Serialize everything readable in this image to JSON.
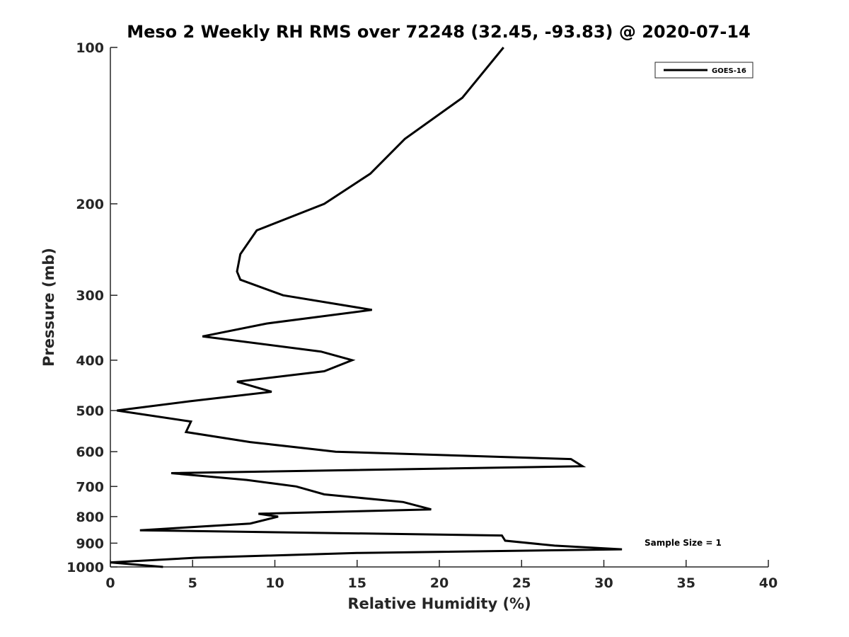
{
  "chart_data": {
    "type": "line",
    "title": "Meso 2 Weekly RH RMS over 72248 (32.45, -93.83) @ 2020-07-14",
    "xlabel": "Relative Humidity (%)",
    "ylabel": "Pressure (mb)",
    "xlim": [
      0,
      40
    ],
    "ylim": [
      100,
      1000
    ],
    "y_scale": "log",
    "y_reversed": true,
    "grid": false,
    "legend_position": "top-right",
    "x_ticks": [
      0,
      5,
      10,
      15,
      20,
      25,
      30,
      35,
      40
    ],
    "x_tick_labels": [
      "0",
      "5",
      "10",
      "15",
      "20",
      "25",
      "30",
      "35",
      "40"
    ],
    "y_ticks": [
      100,
      200,
      300,
      400,
      500,
      600,
      700,
      800,
      900,
      1000
    ],
    "y_tick_labels": [
      "100",
      "200",
      "300",
      "400",
      "500",
      "600",
      "700",
      "800",
      "900",
      "1000"
    ],
    "annotation": "Sample Size = 1",
    "series": [
      {
        "name": "GOES-16",
        "color": "#000000",
        "points": [
          [
            23.9,
            100
          ],
          [
            21.4,
            125
          ],
          [
            17.9,
            150
          ],
          [
            15.8,
            175
          ],
          [
            13.0,
            200
          ],
          [
            8.9,
            225
          ],
          [
            7.9,
            250
          ],
          [
            7.7,
            270
          ],
          [
            7.9,
            280
          ],
          [
            10.5,
            300
          ],
          [
            15.9,
            320
          ],
          [
            9.5,
            340
          ],
          [
            5.6,
            360
          ],
          [
            12.8,
            385
          ],
          [
            14.7,
            400
          ],
          [
            13.0,
            420
          ],
          [
            7.7,
            440
          ],
          [
            9.8,
            460
          ],
          [
            4.8,
            480
          ],
          [
            0.4,
            500
          ],
          [
            4.9,
            525
          ],
          [
            4.6,
            550
          ],
          [
            8.5,
            575
          ],
          [
            13.7,
            600
          ],
          [
            28.0,
            620
          ],
          [
            28.7,
            640
          ],
          [
            3.7,
            660
          ],
          [
            8.3,
            680
          ],
          [
            11.3,
            700
          ],
          [
            13.0,
            725
          ],
          [
            17.8,
            750
          ],
          [
            19.5,
            775
          ],
          [
            9.0,
            790
          ],
          [
            10.2,
            800
          ],
          [
            8.5,
            825
          ],
          [
            1.8,
            850
          ],
          [
            23.8,
            870
          ],
          [
            24.0,
            890
          ],
          [
            27.0,
            910
          ],
          [
            31.1,
            925
          ],
          [
            15.0,
            940
          ],
          [
            5.2,
            960
          ],
          [
            0.0,
            980
          ],
          [
            3.2,
            1000
          ]
        ]
      }
    ]
  }
}
